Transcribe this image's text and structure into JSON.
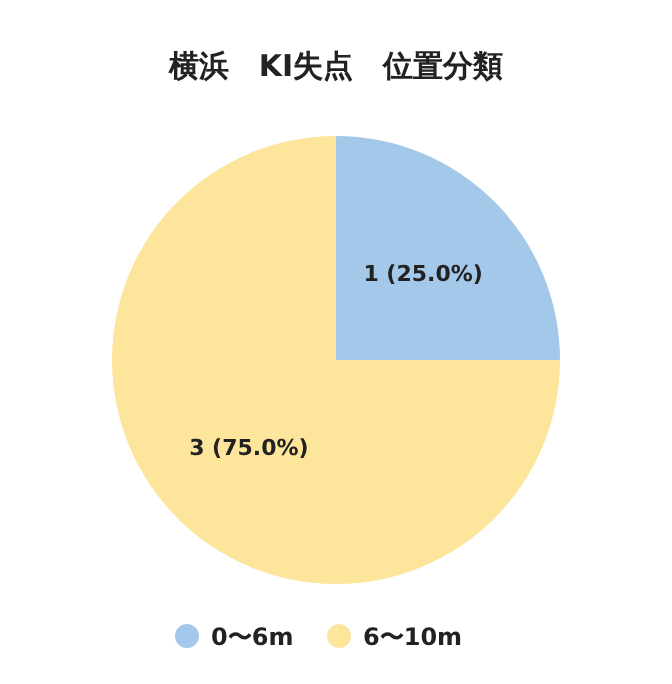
{
  "chart_data": {
    "type": "pie",
    "title": "横浜　KI失点　位置分類",
    "categories": [
      "0〜6m",
      "6〜10m"
    ],
    "values": [
      1,
      3
    ],
    "colors": [
      "#a4c8ea",
      "#fde59c"
    ],
    "value_labels": [
      "1 (25.0%)",
      "3 (75.0%)"
    ],
    "legend": "bottom"
  }
}
